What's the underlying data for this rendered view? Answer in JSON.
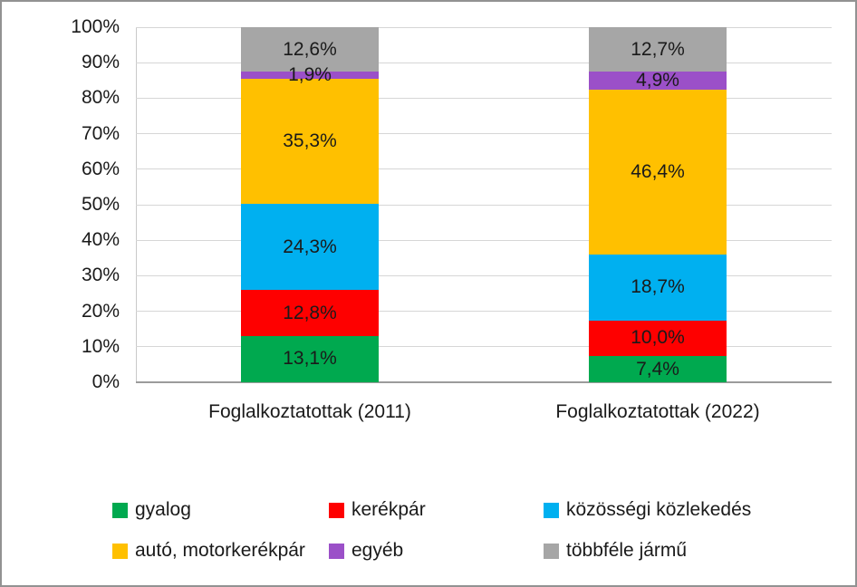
{
  "chart_data": {
    "type": "bar",
    "stacked": true,
    "percent_stacked": true,
    "grid": true,
    "legend_position": "bottom",
    "ylim": [
      0,
      100
    ],
    "y_ticks": [
      "100%",
      "90%",
      "80%",
      "70%",
      "60%",
      "50%",
      "40%",
      "30%",
      "20%",
      "10%",
      "0%"
    ],
    "categories": [
      "Foglalkoztatottak (2011)",
      "Foglalkoztatottak (2022)"
    ],
    "series": [
      {
        "name": "gyalog",
        "color": "#00A94F",
        "values": [
          13.1,
          7.4
        ],
        "labels": [
          "13,1%",
          "7,4%"
        ]
      },
      {
        "name": "kerékpár",
        "color": "#FE0000",
        "values": [
          12.8,
          10.0
        ],
        "labels": [
          "12,8%",
          "10,0%"
        ]
      },
      {
        "name": "közösségi közlekedés",
        "color": "#00B0F0",
        "values": [
          24.3,
          18.7
        ],
        "labels": [
          "24,3%",
          "18,7%"
        ]
      },
      {
        "name": "autó, motorkerékpár",
        "color": "#FFC000",
        "values": [
          35.3,
          46.4
        ],
        "labels": [
          "35,3%",
          "46,4%"
        ]
      },
      {
        "name": "egyéb",
        "color": "#9B50C8",
        "values": [
          1.9,
          4.9
        ],
        "labels": [
          "1,9%",
          "4,9%"
        ]
      },
      {
        "name": "többféle jármű",
        "color": "#A6A6A6",
        "values": [
          12.6,
          12.7
        ],
        "labels": [
          "12,6%",
          "12,7%"
        ]
      }
    ]
  }
}
